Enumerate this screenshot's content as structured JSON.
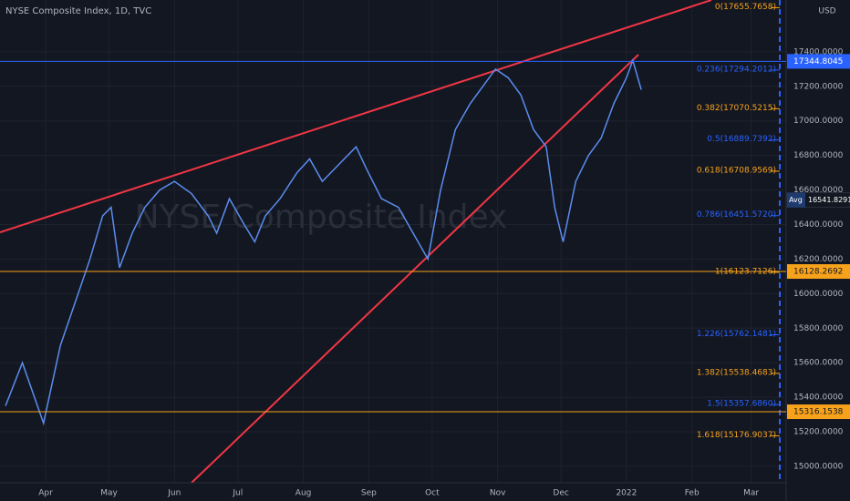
{
  "chart_data": {
    "type": "line",
    "title": "NYSE Composite Index, 1D, TVC",
    "watermark": "NYSE Composite Index",
    "currency": "USD",
    "x": [
      12,
      20,
      30,
      38,
      45,
      52,
      58,
      62,
      66,
      72,
      78,
      85,
      92,
      100,
      108,
      112,
      118,
      125,
      130,
      135,
      142,
      150,
      156,
      162,
      170,
      178,
      183,
      190,
      198,
      205,
      212,
      218,
      225,
      232,
      238,
      244,
      250,
      256,
      262,
      268,
      272,
      276,
      282,
      288,
      294,
      300,
      306,
      309,
      313
    ],
    "series": [
      {
        "name": "NYSE Composite Index",
        "color": "#5b8def",
        "values": [
          15350,
          15600,
          15250,
          15700,
          15950,
          16200,
          16450,
          16500,
          16150,
          16350,
          16500,
          16600,
          16650,
          16580,
          16450,
          16350,
          16550,
          16400,
          16300,
          16450,
          16550,
          16700,
          16780,
          16650,
          16750,
          16850,
          16720,
          16550,
          16500,
          16350,
          16200,
          16600,
          16950,
          17100,
          17200,
          17300,
          17250,
          17150,
          16950,
          16850,
          16500,
          16300,
          16650,
          16800,
          16900,
          17100,
          17250,
          17350,
          17180
        ]
      }
    ],
    "xlim": [
      9.4,
      381.6
    ],
    "xticks": [
      {
        "value": 31,
        "label": "Apr"
      },
      {
        "value": 61,
        "label": "May"
      },
      {
        "value": 92,
        "label": "Jun"
      },
      {
        "value": 122,
        "label": "Jul"
      },
      {
        "value": 153,
        "label": "Aug"
      },
      {
        "value": 184,
        "label": "Sep"
      },
      {
        "value": 214,
        "label": "Oct"
      },
      {
        "value": 245,
        "label": "Nov"
      },
      {
        "value": 275,
        "label": "Dec"
      },
      {
        "value": 306,
        "label": "2022"
      },
      {
        "value": 337,
        "label": "Feb"
      },
      {
        "value": 365,
        "label": "Mar"
      }
    ],
    "ylim": [
      14905,
      17700
    ],
    "yticks": [
      {
        "value": 15000,
        "label": "15000.0000"
      },
      {
        "value": 15200,
        "label": "15200.0000"
      },
      {
        "value": 15400,
        "label": "15400.0000"
      },
      {
        "value": 15600,
        "label": "15600.0000"
      },
      {
        "value": 15800,
        "label": "15800.0000"
      },
      {
        "value": 16000,
        "label": "16000.0000"
      },
      {
        "value": 16200,
        "label": "16200.0000"
      },
      {
        "value": 16400,
        "label": "16400.0000"
      },
      {
        "value": 16600,
        "label": "16600.0000"
      },
      {
        "value": 16800,
        "label": "16800.0000"
      },
      {
        "value": 17000,
        "label": "17000.0000"
      },
      {
        "value": 17200,
        "label": "17200.0000"
      },
      {
        "value": 17400,
        "label": "17400.0000"
      }
    ],
    "grid": true,
    "fib_levels": [
      {
        "value": 17655.7658,
        "label": "0(17655.7658)",
        "color": "#f7a21b"
      },
      {
        "value": 17294.2012,
        "label": "0.236(17294.2012)",
        "color": "#2962ff"
      },
      {
        "value": 17070.5215,
        "label": "0.382(17070.5215)",
        "color": "#f7a21b"
      },
      {
        "value": 16889.7392,
        "label": "0.5(16889.7392)",
        "color": "#2962ff"
      },
      {
        "value": 16708.9569,
        "label": "0.618(16708.9569)",
        "color": "#f7a21b"
      },
      {
        "value": 16451.572,
        "label": "0.786(16451.5720)",
        "color": "#2962ff"
      },
      {
        "value": 16123.7126,
        "label": "1(16123.7126)",
        "color": "#f7a21b"
      },
      {
        "value": 15762.1481,
        "label": "1.226(15762.1481)",
        "color": "#2962ff"
      },
      {
        "value": 15538.4683,
        "label": "1.382(15538.4683)",
        "color": "#f7a21b"
      },
      {
        "value": 15357.686,
        "label": "1.5(15357.6860)",
        "color": "#2962ff"
      },
      {
        "value": 15176.9037,
        "label": "1.618(15176.9037)",
        "color": "#f7a21b"
      }
    ],
    "price_badges": [
      {
        "value": 17344.8045,
        "color": "#2962ff"
      },
      {
        "value": 16128.2692,
        "color": "#f7a21b"
      },
      {
        "value": 15316.1538,
        "color": "#f7a21b"
      }
    ],
    "avg": {
      "label": "Avg",
      "value": 16541.8291
    }
  }
}
